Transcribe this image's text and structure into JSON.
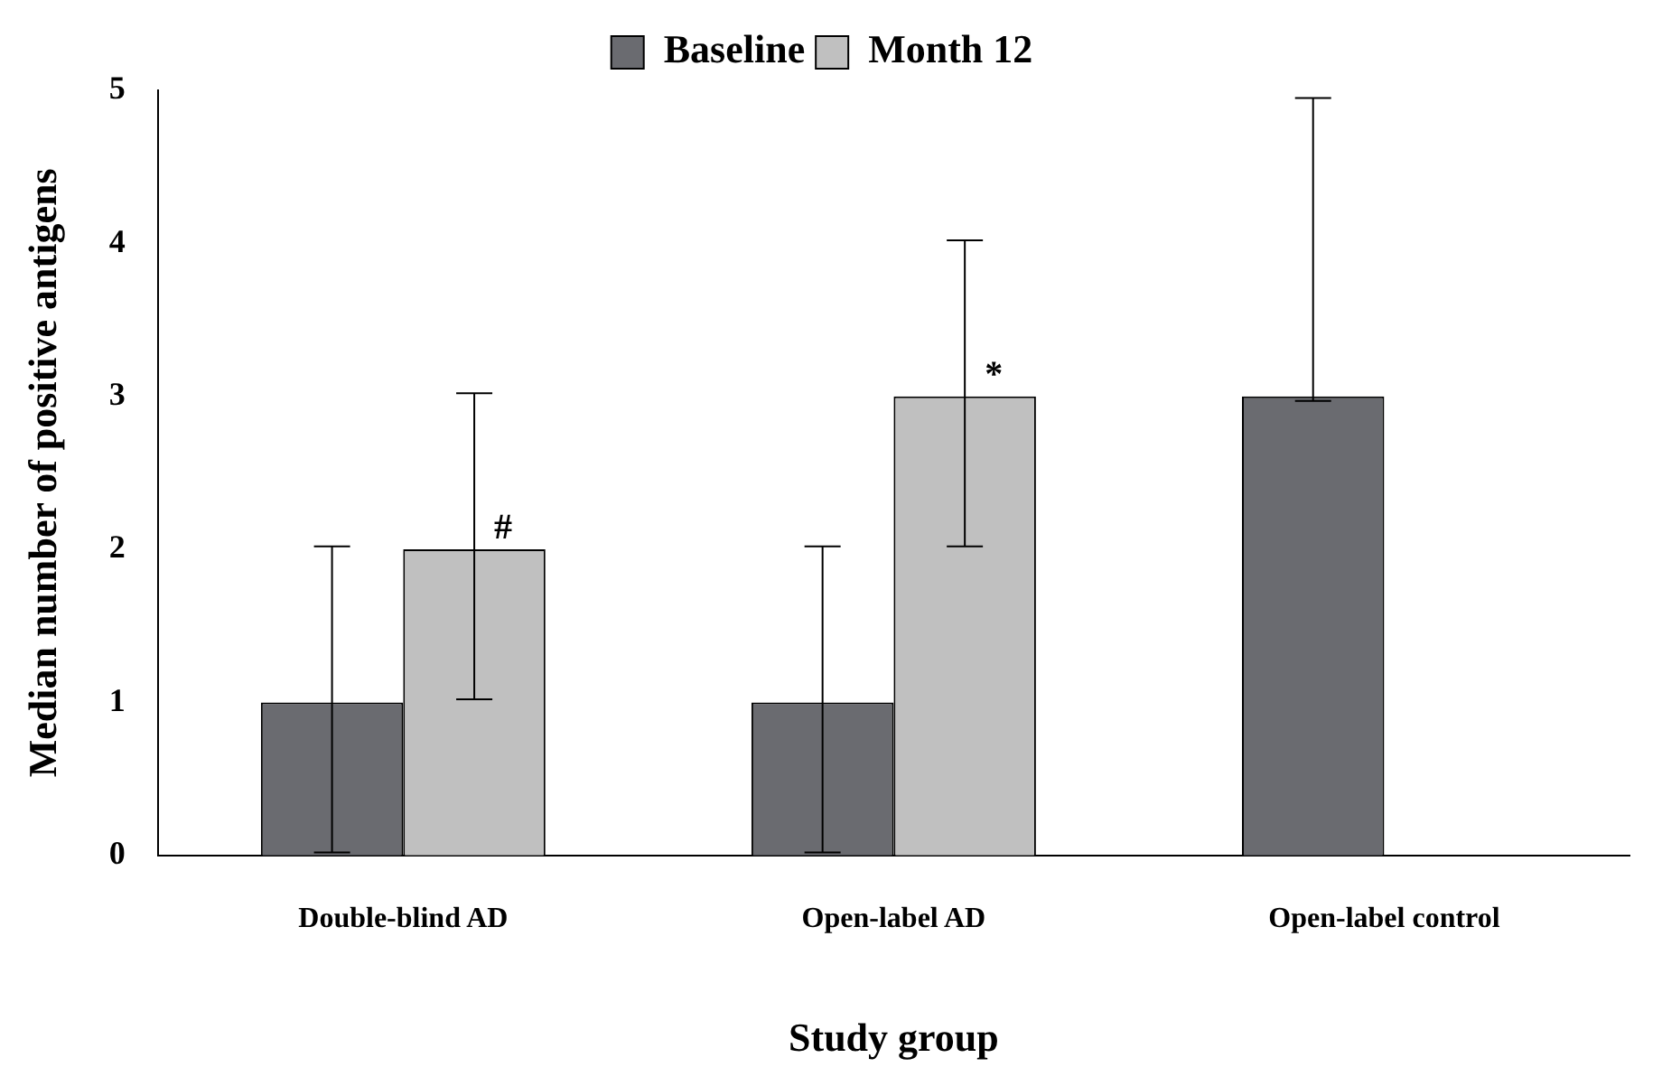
{
  "chart_data": {
    "type": "bar",
    "xlabel": "Study group",
    "ylabel": "Median number of positive antigens",
    "categories": [
      "Double-blind AD",
      "Open-label AD",
      "Open-label control"
    ],
    "series": [
      {
        "name": "Baseline",
        "color": "#6a6b70",
        "values": [
          1,
          1,
          3
        ],
        "errors": [
          [
            0.02,
            2.02
          ],
          [
            0.02,
            2.02
          ],
          [
            2.97,
            4.95
          ]
        ]
      },
      {
        "name": "Month 12",
        "color": "#c0c0c0",
        "values": [
          2,
          3,
          null
        ],
        "errors": [
          [
            1.02,
            3.02
          ],
          [
            2.02,
            4.02
          ],
          null
        ]
      }
    ],
    "ylim": [
      0,
      5
    ],
    "yticks": [
      0,
      1,
      2,
      3,
      4,
      5
    ],
    "grid": false,
    "legend": "top",
    "annotations": [
      {
        "text": "#",
        "x": "Double-blind AD",
        "y": 2
      },
      {
        "text": "*",
        "x": "Open-label AD",
        "y": 3
      }
    ]
  }
}
